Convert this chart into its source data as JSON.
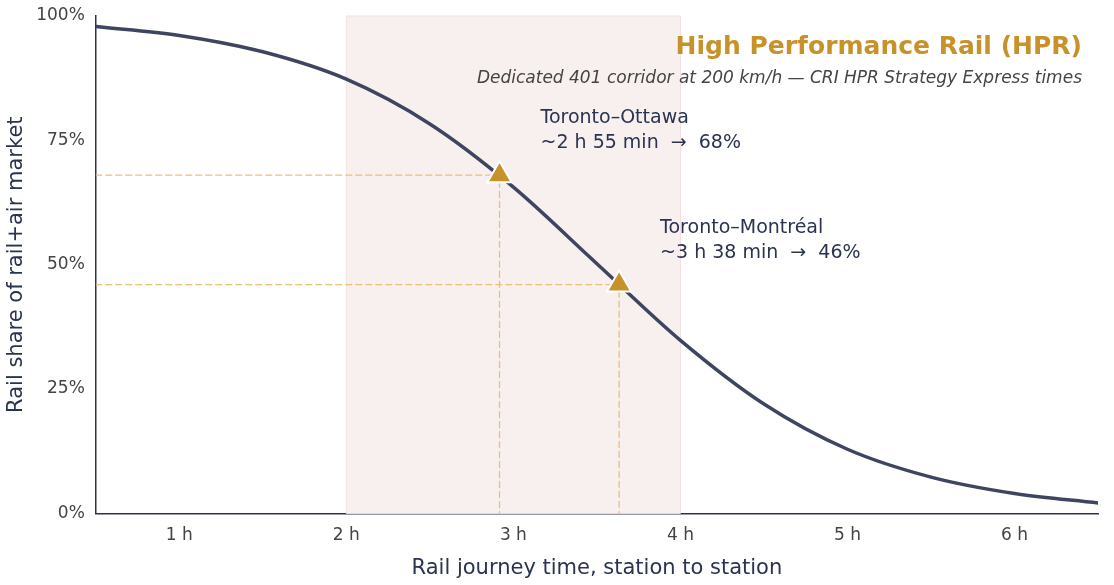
{
  "chart_data": {
    "type": "line",
    "title": "High Performance Rail (HPR)",
    "subtitle": "Dedicated 401 corridor at 200 km/h — CRI HPR Strategy Express times",
    "xlabel": "Rail journey time, station to station",
    "ylabel": "Rail share of rail+air market",
    "xlim": [
      0.5,
      6.5
    ],
    "xticks": [
      {
        "value": 1,
        "label": "1 h"
      },
      {
        "value": 2,
        "label": "2 h"
      },
      {
        "value": 3,
        "label": "3 h"
      },
      {
        "value": 4,
        "label": "4 h"
      },
      {
        "value": 5,
        "label": "5 h"
      },
      {
        "value": 6,
        "label": "6 h"
      }
    ],
    "ylim": [
      0,
      100
    ],
    "yticks": [
      {
        "value": 0,
        "label": "0%"
      },
      {
        "value": 25,
        "label": "25%"
      },
      {
        "value": 50,
        "label": "50%"
      },
      {
        "value": 75,
        "label": "75%"
      },
      {
        "value": 100,
        "label": "100%"
      }
    ],
    "series": [
      {
        "type": "line",
        "color": "#3e4560",
        "x": [
          0.5,
          1,
          1.5,
          2,
          2.5,
          3,
          3.5,
          4,
          4.5,
          5,
          5.5,
          6,
          6.5
        ],
        "values": [
          97.9,
          96.1,
          92.8,
          87.3,
          78.3,
          65.6,
          50.2,
          34.8,
          22.0,
          12.9,
          7.3,
          4.0,
          2.1
        ]
      },
      {
        "type": "line",
        "color": "#e8c07a",
        "line_style": "dashed",
        "x": [
          0.5,
          2.917,
          2.917
        ],
        "values": [
          68,
          68,
          0
        ]
      },
      {
        "type": "line",
        "color": "#e8c07a",
        "line_style": "dashed",
        "x": [
          0.5,
          3.633,
          3.633
        ],
        "values": [
          46,
          46,
          0
        ]
      },
      {
        "type": "scatter",
        "color": "#c8922a",
        "marker": "triangle",
        "x": [
          2.917,
          3.633
        ],
        "values": [
          68,
          46
        ]
      }
    ],
    "bands": [
      {
        "axis": "x",
        "from": 2,
        "to": 4,
        "color": "#f8f0ef"
      }
    ],
    "annotations": [
      {
        "text": "Toronto–Ottawa\n~2 h 55 min  →  68%",
        "x": 2.917,
        "y": 68
      },
      {
        "text": "Toronto–Montréal\n~3 h 38 min  →  46%",
        "x": 3.633,
        "y": 46
      }
    ],
    "grid": false,
    "legend": false
  }
}
